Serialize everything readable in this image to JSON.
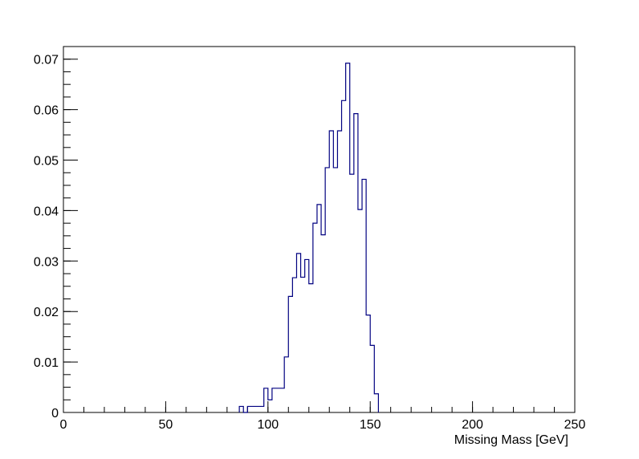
{
  "chart_data": {
    "type": "bar",
    "style": "step-histogram",
    "xlabel": "Missing Mass [GeV]",
    "ylabel": "",
    "xlim": [
      0,
      250
    ],
    "ylim": [
      0,
      0.0725
    ],
    "x_ticks": [
      0,
      50,
      100,
      150,
      200,
      250
    ],
    "y_ticks": [
      0,
      0.01,
      0.02,
      0.03,
      0.04,
      0.05,
      0.06,
      0.07
    ],
    "x_tick_labels": [
      "0",
      "50",
      "100",
      "150",
      "200",
      "250"
    ],
    "y_tick_labels": [
      "0",
      "0.01",
      "0.02",
      "0.03",
      "0.04",
      "0.05",
      "0.06",
      "0.07"
    ],
    "grid": false,
    "legend": "none",
    "line_color": "#000080",
    "bins": {
      "edges": [
        86,
        88,
        90,
        92,
        94,
        96,
        98,
        100,
        102,
        104,
        106,
        108,
        110,
        112,
        114,
        116,
        118,
        120,
        122,
        124,
        126,
        128,
        130,
        132,
        134,
        136,
        138,
        140,
        142,
        144,
        146,
        148,
        150,
        152,
        154
      ],
      "values": [
        0.0012,
        0.0,
        0.0012,
        0.0012,
        0.0012,
        0.0012,
        0.0048,
        0.0025,
        0.0048,
        0.0048,
        0.0048,
        0.011,
        0.023,
        0.0267,
        0.0315,
        0.0268,
        0.0303,
        0.0255,
        0.0375,
        0.0412,
        0.0352,
        0.0485,
        0.0558,
        0.0485,
        0.0558,
        0.0618,
        0.0692,
        0.0472,
        0.0592,
        0.0402,
        0.0462,
        0.0193,
        0.0133,
        0.0037
      ]
    }
  }
}
